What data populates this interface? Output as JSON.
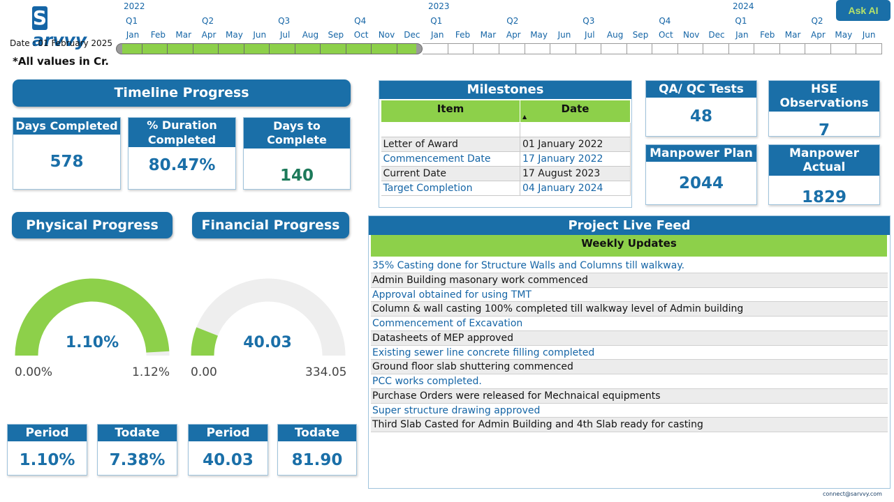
{
  "brand": {
    "logo_text": "arvvy",
    "logo_letter": "S"
  },
  "header": {
    "date_label": "Date : 01 February 2025",
    "values_note": "*All values in Cr.",
    "ask_ai": "Ask AI"
  },
  "timeline": {
    "years": [
      "2022",
      "2023",
      "2024"
    ],
    "quarters": [
      "Q1",
      "Q2",
      "Q3",
      "Q4",
      "Q1",
      "Q2",
      "Q3",
      "Q4",
      "Q1",
      "Q2"
    ],
    "months": [
      "Jan",
      "Feb",
      "Mar",
      "Apr",
      "May",
      "Jun",
      "Jul",
      "Aug",
      "Sep",
      "Oct",
      "Nov",
      "Dec",
      "Jan",
      "Feb",
      "Mar",
      "Apr",
      "May",
      "Jun",
      "Jul",
      "Aug",
      "Sep",
      "Oct",
      "Nov",
      "Dec",
      "Jan",
      "Feb",
      "Mar",
      "Apr",
      "May",
      "Jun"
    ],
    "completed_months": 12,
    "total_months": 30
  },
  "timeline_progress": {
    "title": "Timeline Progress",
    "days_completed_label": "Days Completed",
    "days_completed": "578",
    "duration_label": "% Duration Completed",
    "duration": "80.47%",
    "days_to_complete_label": "Days to Complete",
    "days_to_complete": "140"
  },
  "milestones": {
    "title": "Milestones",
    "col_item": "Item",
    "col_date": "Date",
    "rows": [
      {
        "item": "Letter of Award",
        "date": "01 January 2022"
      },
      {
        "item": "Commencement Date",
        "date": "17 January 2022"
      },
      {
        "item": "Current Date",
        "date": "17 August 2023"
      },
      {
        "item": "Target Completion",
        "date": "04 January 2024"
      }
    ]
  },
  "stats": {
    "qa_label": "QA/ QC Tests",
    "qa_value": "48",
    "hse_label": "HSE Observations",
    "hse_value": "7",
    "mp_plan_label": "Manpower Plan",
    "mp_plan_value": "2044",
    "mp_actual_label": "Manpower Actual",
    "mp_actual_value": "1829"
  },
  "physical": {
    "title": "Physical Progress",
    "value": "1.10%",
    "min": "0.00%",
    "max": "1.12%",
    "fraction": 0.982,
    "period_label": "Period",
    "period_value": "1.10%",
    "todate_label": "Todate",
    "todate_value": "7.38%"
  },
  "financial": {
    "title": "Financial Progress",
    "value": "40.03",
    "min": "0.00",
    "max": "334.05",
    "fraction": 0.12,
    "period_label": "Period",
    "period_value": "40.03",
    "todate_label": "Todate",
    "todate_value": "81.90"
  },
  "feed": {
    "title": "Project Live Feed",
    "subtitle": "Weekly Updates",
    "items": [
      "35% Casting done for Structure Walls and Columns till walkway.",
      "Admin Building masonary work commenced",
      "Approval obtained for using TMT",
      "Column & wall casting 100% completed till walkway level of Admin building",
      "Commencement of Excavation",
      "Datasheets of MEP approved",
      "Existing sewer line concrete filling completed",
      "Ground floor slab shuttering commenced",
      "PCC works completed.",
      "Purchase Orders were released for Mechnaical equipments",
      "Super structure drawing approved",
      "Third Slab Casted for Admin Building and 4th Slab ready for casting"
    ]
  },
  "colors": {
    "brand_blue": "#1a6fa8",
    "accent_green": "#8dd04a",
    "gauge_track": "#eeeeee"
  },
  "footer": {
    "contact": "connect@sarvvy.com"
  }
}
